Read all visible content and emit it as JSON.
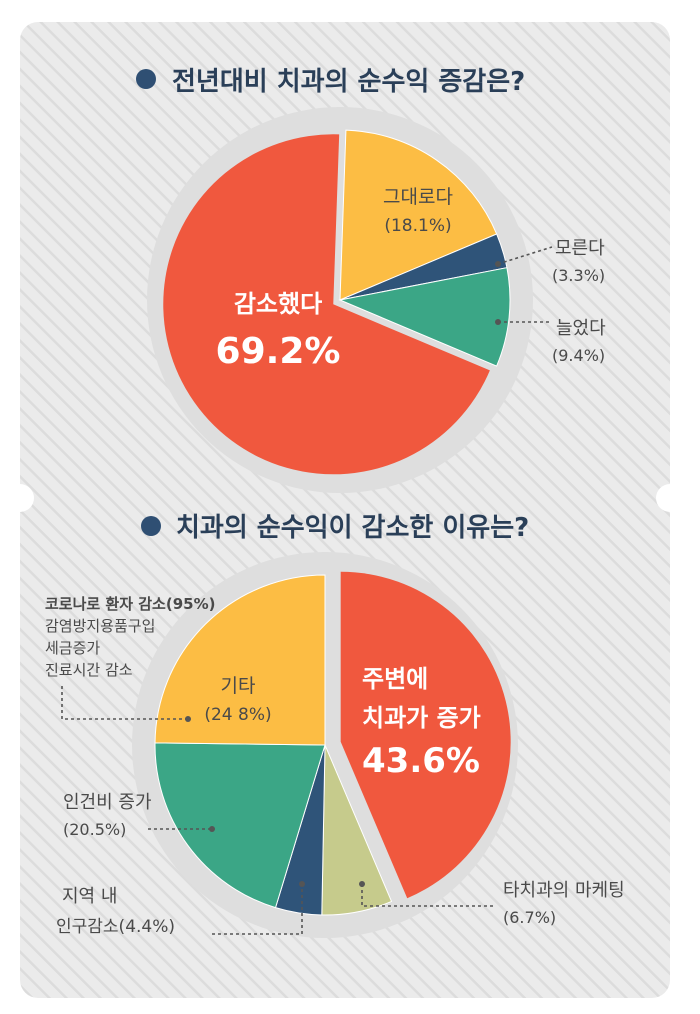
{
  "colors": {
    "card": "#ebebeb",
    "stripe": "#dcdcdc",
    "shadow_ring": "#dedede",
    "title_bullet": "#2f4f73",
    "title_text": "#2a3f58",
    "label_text": "#4a4a4a",
    "red": "#f0583e",
    "yellow": "#fcbd44",
    "navy": "#2f5479",
    "teal": "#3ba686",
    "olive": "#c6cb8c"
  },
  "chart_data": [
    {
      "type": "pie",
      "title": "전년대비 치과의 순수익 증감은?",
      "slices": [
        {
          "key": "decrease",
          "label": "감소했다",
          "value_text": "69.2%",
          "value": 69.2,
          "color": "#f0583e"
        },
        {
          "key": "same",
          "label": "그대로다",
          "value_text": "(18.1%)",
          "value": 18.1,
          "color": "#fcbd44"
        },
        {
          "key": "unknown",
          "label": "모른다",
          "value_text": "(3.3%)",
          "value": 3.3,
          "color": "#2f5479"
        },
        {
          "key": "increase",
          "label": "늘었다",
          "value_text": "(9.4%)",
          "value": 9.4,
          "color": "#3ba686"
        }
      ]
    },
    {
      "type": "pie",
      "title": "치과의 순수익이 감소한 이유는?",
      "slices": [
        {
          "key": "competition",
          "label_line1": "주변에",
          "label_line2": "치과가 증가",
          "value_text": "43.6%",
          "value": 43.6,
          "color": "#f0583e"
        },
        {
          "key": "other",
          "label": "기타",
          "value_text": "(24 8%)",
          "value": 24.8,
          "color": "#fcbd44"
        },
        {
          "key": "labor",
          "label": "인건비 증가",
          "value_text": "(20.5%)",
          "value": 20.5,
          "color": "#3ba686"
        },
        {
          "key": "population",
          "label": "지역 내",
          "label_line2": "인구감소(4.4%)",
          "value": 4.4,
          "color": "#2f5479"
        },
        {
          "key": "marketing",
          "label": "타치과의 마케팅",
          "value_text": "(6.7%)",
          "value": 6.7,
          "color": "#c6cb8c"
        }
      ],
      "other_details": [
        "코로나로 환자 감소(95%)",
        "감염방지용품구입",
        "세금증가",
        "진료시간 감소"
      ]
    }
  ]
}
